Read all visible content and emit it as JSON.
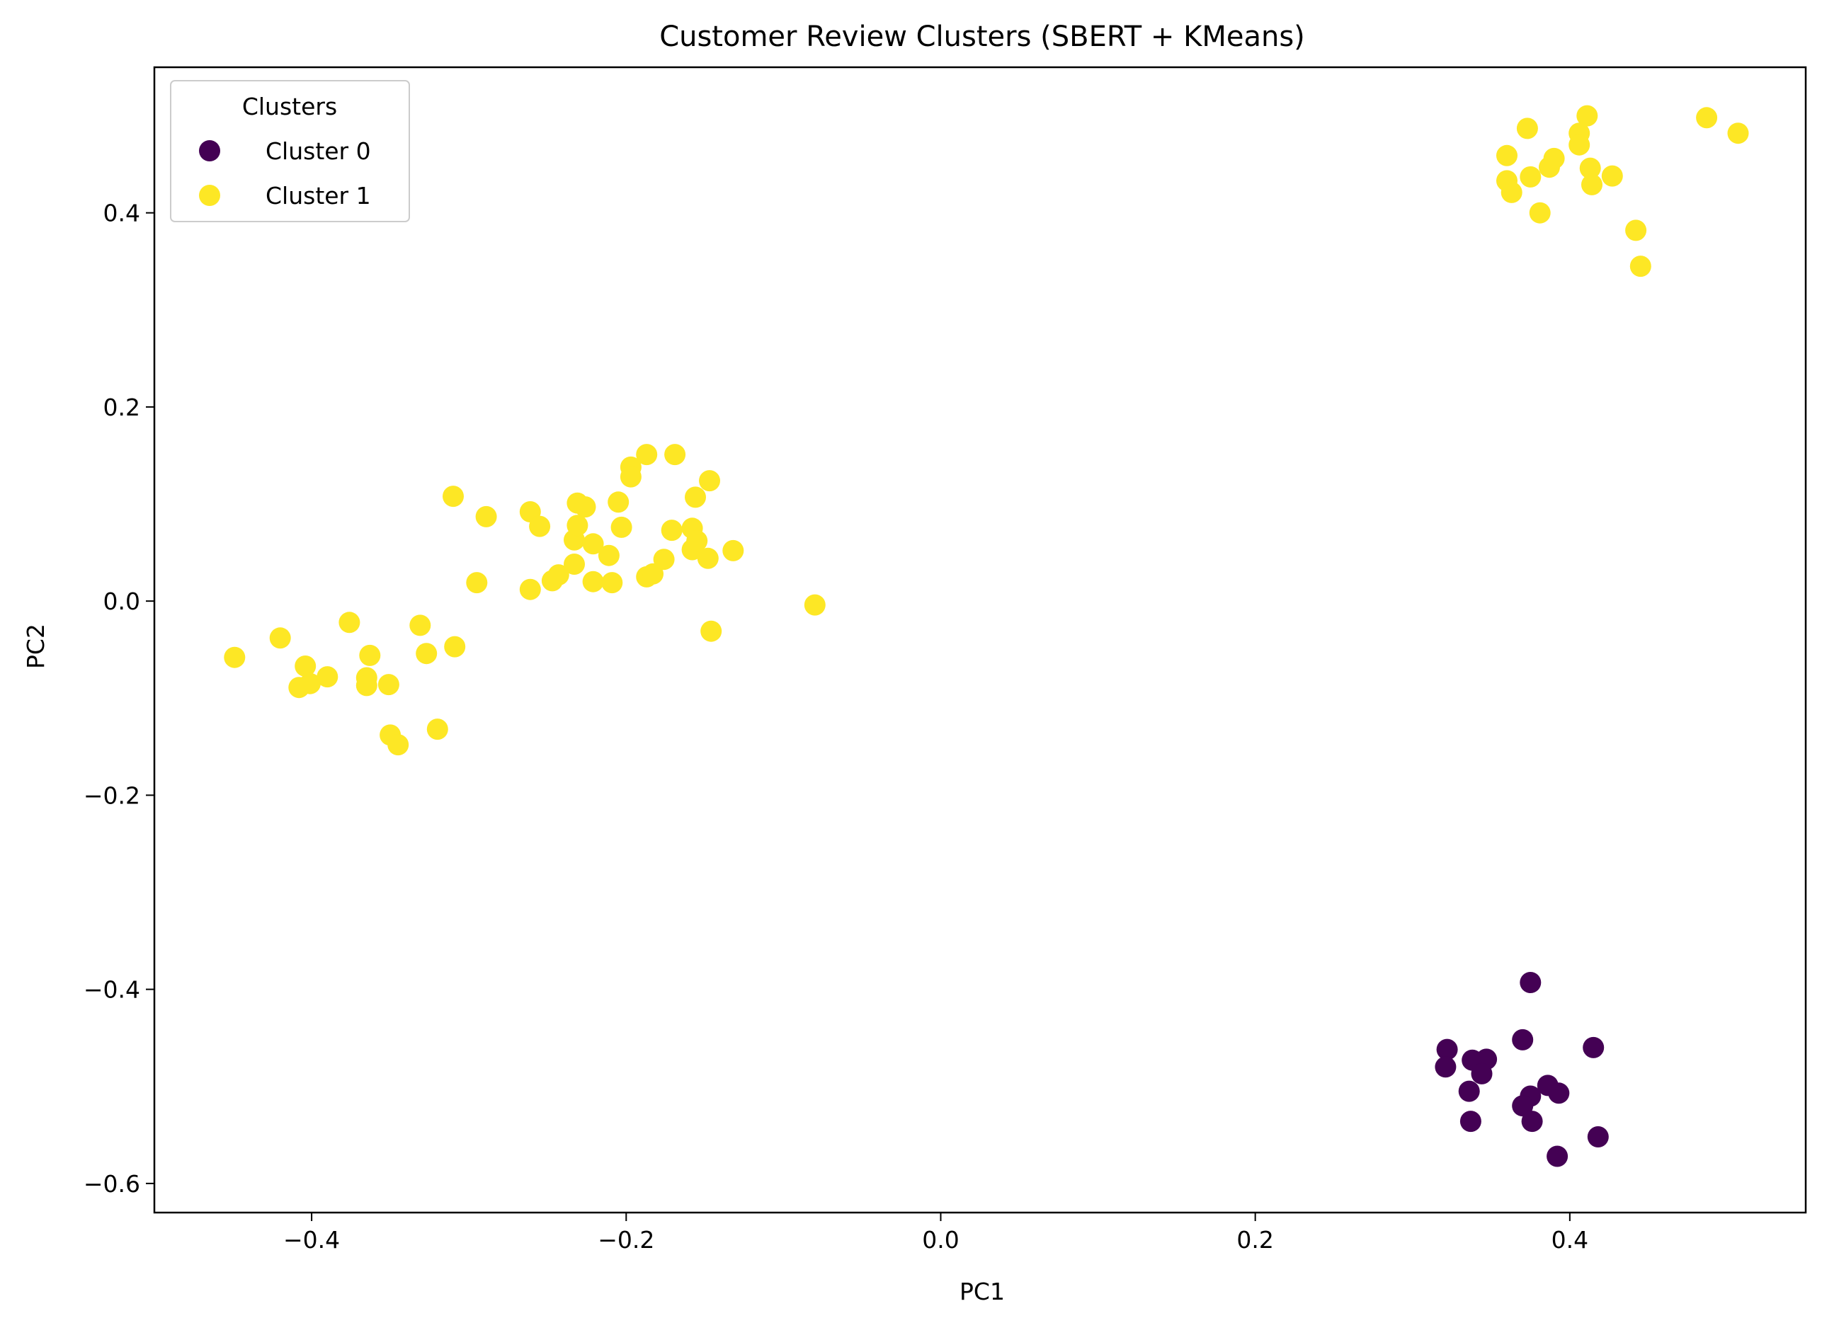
{
  "chart_data": {
    "type": "scatter",
    "title": "Customer Review Clusters (SBERT + KMeans)",
    "xlabel": "PC1",
    "ylabel": "PC2",
    "xlim": [
      -0.5,
      0.55
    ],
    "ylim": [
      -0.63,
      0.55
    ],
    "xticks": [
      -0.4,
      -0.2,
      0.0,
      0.2,
      0.4
    ],
    "xtick_labels": [
      "−0.4",
      "−0.2",
      "0.0",
      "0.2",
      "0.4"
    ],
    "yticks": [
      -0.6,
      -0.4,
      -0.2,
      0.0,
      0.2,
      0.4
    ],
    "ytick_labels": [
      "−0.6",
      "−0.4",
      "−0.2",
      "0.0",
      "0.2",
      "0.4"
    ],
    "grid": false,
    "legend": {
      "title": "Clusters",
      "placement": "top-left",
      "entries": [
        "Cluster 0",
        "Cluster 1"
      ]
    },
    "series": [
      {
        "name": "Cluster 0",
        "color": "#440154",
        "points": [
          [
            0.375,
            -0.393
          ],
          [
            0.37,
            -0.452
          ],
          [
            0.415,
            -0.46
          ],
          [
            0.322,
            -0.462
          ],
          [
            0.338,
            -0.473
          ],
          [
            0.347,
            -0.472
          ],
          [
            0.321,
            -0.48
          ],
          [
            0.344,
            -0.487
          ],
          [
            0.386,
            -0.499
          ],
          [
            0.336,
            -0.505
          ],
          [
            0.393,
            -0.507
          ],
          [
            0.375,
            -0.51
          ],
          [
            0.37,
            -0.52
          ],
          [
            0.337,
            -0.536
          ],
          [
            0.376,
            -0.536
          ],
          [
            0.418,
            -0.552
          ],
          [
            0.392,
            -0.572
          ]
        ]
      },
      {
        "name": "Cluster 1",
        "color": "#fde725",
        "points": [
          [
            -0.449,
            -0.058
          ],
          [
            -0.42,
            -0.038
          ],
          [
            -0.404,
            -0.067
          ],
          [
            -0.408,
            -0.089
          ],
          [
            -0.401,
            -0.085
          ],
          [
            -0.39,
            -0.078
          ],
          [
            -0.376,
            -0.022
          ],
          [
            -0.365,
            -0.079
          ],
          [
            -0.365,
            -0.087
          ],
          [
            -0.363,
            -0.056
          ],
          [
            -0.351,
            -0.086
          ],
          [
            -0.35,
            -0.138
          ],
          [
            -0.345,
            -0.148
          ],
          [
            -0.331,
            -0.025
          ],
          [
            -0.327,
            -0.054
          ],
          [
            -0.32,
            -0.132
          ],
          [
            -0.31,
            0.108
          ],
          [
            -0.309,
            -0.047
          ],
          [
            -0.295,
            0.019
          ],
          [
            -0.289,
            0.087
          ],
          [
            -0.261,
            0.092
          ],
          [
            -0.261,
            0.012
          ],
          [
            -0.255,
            0.077
          ],
          [
            -0.247,
            0.021
          ],
          [
            -0.243,
            0.027
          ],
          [
            -0.233,
            0.038
          ],
          [
            -0.233,
            0.063
          ],
          [
            -0.231,
            0.078
          ],
          [
            -0.231,
            0.101
          ],
          [
            -0.226,
            0.097
          ],
          [
            -0.221,
            0.059
          ],
          [
            -0.221,
            0.02
          ],
          [
            -0.211,
            0.047
          ],
          [
            -0.209,
            0.019
          ],
          [
            -0.205,
            0.102
          ],
          [
            -0.203,
            0.076
          ],
          [
            -0.197,
            0.138
          ],
          [
            -0.197,
            0.128
          ],
          [
            -0.187,
            0.151
          ],
          [
            -0.187,
            0.025
          ],
          [
            -0.183,
            0.028
          ],
          [
            -0.176,
            0.043
          ],
          [
            -0.171,
            0.073
          ],
          [
            -0.169,
            0.151
          ],
          [
            -0.158,
            0.075
          ],
          [
            -0.158,
            0.053
          ],
          [
            -0.156,
            0.107
          ],
          [
            -0.155,
            0.062
          ],
          [
            -0.148,
            0.044
          ],
          [
            -0.147,
            0.124
          ],
          [
            -0.146,
            -0.031
          ],
          [
            -0.132,
            0.052
          ],
          [
            -0.08,
            -0.004
          ],
          [
            0.36,
            0.459
          ],
          [
            0.36,
            0.433
          ],
          [
            0.363,
            0.421
          ],
          [
            0.373,
            0.487
          ],
          [
            0.375,
            0.437
          ],
          [
            0.381,
            0.4
          ],
          [
            0.387,
            0.447
          ],
          [
            0.39,
            0.456
          ],
          [
            0.406,
            0.482
          ],
          [
            0.406,
            0.47
          ],
          [
            0.411,
            0.5
          ],
          [
            0.413,
            0.446
          ],
          [
            0.414,
            0.429
          ],
          [
            0.427,
            0.438
          ],
          [
            0.442,
            0.382
          ],
          [
            0.445,
            0.345
          ],
          [
            0.487,
            0.498
          ],
          [
            0.507,
            0.482
          ]
        ]
      }
    ]
  }
}
